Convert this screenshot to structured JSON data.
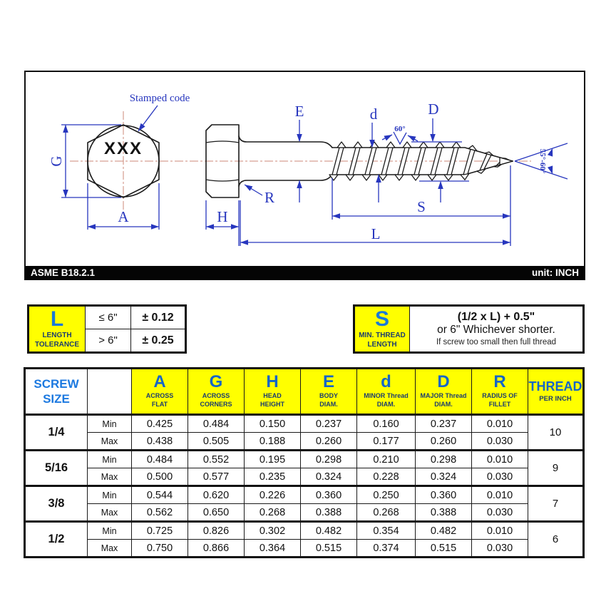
{
  "title_bar": {
    "standard": "ASME B18.2.1",
    "unit": "unit: INCH"
  },
  "drawing": {
    "stamped_code_label": "Stamped code",
    "stamped_code": "XXX",
    "dims": {
      "G": "G",
      "A": "A",
      "H": "H",
      "E": "E",
      "d": "d",
      "D": "D",
      "R": "R",
      "S": "S",
      "L": "L"
    },
    "thread_angle": "60°",
    "point_angle": "55°-60°",
    "colors": {
      "dimension": "#2736be",
      "centerline": "#cc8878",
      "object": "#1b1b1b",
      "highlight": "#ffff00"
    }
  },
  "length_tolerance": {
    "symbol": "L",
    "caption_line1": "LENGTH",
    "caption_line2": "TOLERANCE",
    "rows": [
      {
        "condition": "≤ 6\"",
        "value": "± 0.12"
      },
      {
        "condition": "> 6\"",
        "value": "± 0.25"
      }
    ]
  },
  "min_thread_length": {
    "symbol": "S",
    "caption_line1": "MIN. THREAD",
    "caption_line2": "LENGTH",
    "formula": "(1/2 x L) + 0.5\"",
    "alt": "or 6\" Whichever shorter.",
    "note": "If screw too small then full thread"
  },
  "spec_table": {
    "corner_header_line1": "SCREW",
    "corner_header_line2": "SIZE",
    "min_label": "Min",
    "max_label": "Max",
    "columns": [
      {
        "symbol": "A",
        "sub1": "ACROSS",
        "sub2": "FLAT"
      },
      {
        "symbol": "G",
        "sub1": "ACROSS",
        "sub2": "CORNERS"
      },
      {
        "symbol": "H",
        "sub1": "HEAD",
        "sub2": "HEIGHT"
      },
      {
        "symbol": "E",
        "sub1": "BODY",
        "sub2": "DIAM."
      },
      {
        "symbol": "d",
        "sub1": "MINOR Thread",
        "sub2": "DIAM."
      },
      {
        "symbol": "D",
        "sub1": "MAJOR Thread",
        "sub2": "DIAM."
      },
      {
        "symbol": "R",
        "sub1": "RADIUS OF",
        "sub2": "FILLET"
      }
    ],
    "thread_header_line1": "THREAD",
    "thread_header_line2": "PER INCH",
    "rows": [
      {
        "size": "1/4",
        "min": [
          "0.425",
          "0.484",
          "0.150",
          "0.237",
          "0.160",
          "0.237",
          "0.010"
        ],
        "max": [
          "0.438",
          "0.505",
          "0.188",
          "0.260",
          "0.177",
          "0.260",
          "0.030"
        ],
        "threads_per_inch": "10"
      },
      {
        "size": "5/16",
        "min": [
          "0.484",
          "0.552",
          "0.195",
          "0.298",
          "0.210",
          "0.298",
          "0.010"
        ],
        "max": [
          "0.500",
          "0.577",
          "0.235",
          "0.324",
          "0.228",
          "0.324",
          "0.030"
        ],
        "threads_per_inch": "9"
      },
      {
        "size": "3/8",
        "min": [
          "0.544",
          "0.620",
          "0.226",
          "0.360",
          "0.250",
          "0.360",
          "0.010"
        ],
        "max": [
          "0.562",
          "0.650",
          "0.268",
          "0.388",
          "0.268",
          "0.388",
          "0.030"
        ],
        "threads_per_inch": "7"
      },
      {
        "size": "1/2",
        "min": [
          "0.725",
          "0.826",
          "0.302",
          "0.482",
          "0.354",
          "0.482",
          "0.010"
        ],
        "max": [
          "0.750",
          "0.866",
          "0.364",
          "0.515",
          "0.374",
          "0.515",
          "0.030"
        ],
        "threads_per_inch": "6"
      }
    ]
  }
}
